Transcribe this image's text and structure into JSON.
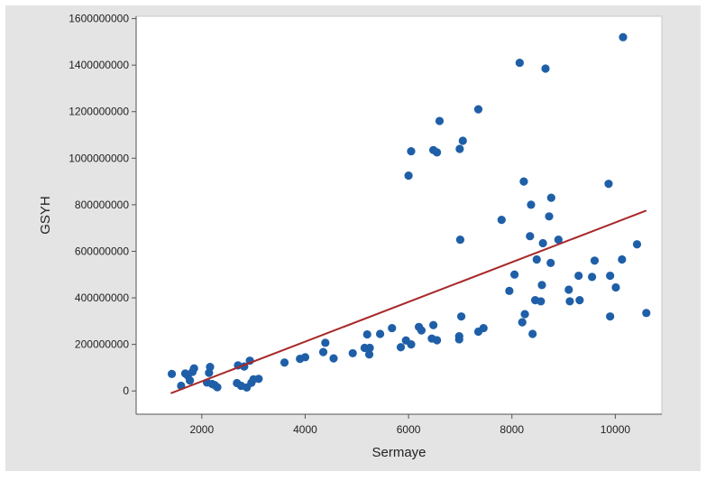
{
  "chart_data": {
    "type": "scatter",
    "title": "",
    "xlabel": "Sermaye",
    "ylabel": "GSYH",
    "xlim": [
      730,
      10900
    ],
    "ylim": [
      -100000000,
      1610000000
    ],
    "xticks": [
      2000,
      4000,
      6000,
      8000,
      10000
    ],
    "yticks": [
      0,
      200000000,
      400000000,
      600000000,
      800000000,
      1000000000,
      1200000000,
      1400000000,
      1600000000
    ],
    "xtick_labels": [
      "2000",
      "4000",
      "6000",
      "8000",
      "10000"
    ],
    "ytick_labels": [
      "0",
      "200000000",
      "400000000",
      "600000000",
      "800000000",
      "1000000000",
      "1200000000",
      "1400000000",
      "1600000000"
    ],
    "grid": false,
    "legend": "none",
    "colors": {
      "outer_background": "#e4e4e4",
      "plot_background": "#ffffff",
      "points": "#1f5fa8",
      "fit_line": "#a8292a",
      "text": "#222222"
    },
    "fit_line": {
      "x": [
        1400,
        10600
      ],
      "y": [
        -10000000,
        775000000
      ]
    },
    "points": [
      [
        1420,
        73000000
      ],
      [
        1600,
        22000000
      ],
      [
        1680,
        75000000
      ],
      [
        1730,
        66000000
      ],
      [
        1770,
        45000000
      ],
      [
        1820,
        82000000
      ],
      [
        1850,
        97000000
      ],
      [
        2100,
        36000000
      ],
      [
        2140,
        78000000
      ],
      [
        2160,
        103000000
      ],
      [
        2200,
        30000000
      ],
      [
        2250,
        25000000
      ],
      [
        2300,
        16000000
      ],
      [
        2680,
        34000000
      ],
      [
        2700,
        110000000
      ],
      [
        2760,
        22000000
      ],
      [
        2820,
        105000000
      ],
      [
        2870,
        15000000
      ],
      [
        2930,
        130000000
      ],
      [
        2960,
        35000000
      ],
      [
        3000,
        50000000
      ],
      [
        3100,
        52000000
      ],
      [
        3600,
        122000000
      ],
      [
        3900,
        138000000
      ],
      [
        4000,
        145000000
      ],
      [
        4350,
        167000000
      ],
      [
        4390,
        207000000
      ],
      [
        4550,
        140000000
      ],
      [
        4920,
        162000000
      ],
      [
        5150,
        185000000
      ],
      [
        5200,
        243000000
      ],
      [
        5240,
        157000000
      ],
      [
        5250,
        185000000
      ],
      [
        5450,
        245000000
      ],
      [
        5680,
        270000000
      ],
      [
        5850,
        188000000
      ],
      [
        5950,
        217000000
      ],
      [
        6050,
        200000000
      ],
      [
        6000,
        925000000
      ],
      [
        6050,
        1030000000
      ],
      [
        6200,
        275000000
      ],
      [
        6250,
        260000000
      ],
      [
        6450,
        225000000
      ],
      [
        6480,
        283000000
      ],
      [
        6480,
        1035000000
      ],
      [
        6550,
        1025000000
      ],
      [
        6550,
        218000000
      ],
      [
        6600,
        1160000000
      ],
      [
        6980,
        235000000
      ],
      [
        6980,
        222000000
      ],
      [
        6990,
        1040000000
      ],
      [
        7000,
        650000000
      ],
      [
        7020,
        320000000
      ],
      [
        7050,
        1075000000
      ],
      [
        7350,
        1210000000
      ],
      [
        7350,
        255000000
      ],
      [
        7450,
        270000000
      ],
      [
        7800,
        735000000
      ],
      [
        7950,
        430000000
      ],
      [
        8050,
        500000000
      ],
      [
        8150,
        1410000000
      ],
      [
        8200,
        295000000
      ],
      [
        8250,
        330000000
      ],
      [
        8230,
        900000000
      ],
      [
        8350,
        665000000
      ],
      [
        8370,
        800000000
      ],
      [
        8400,
        245000000
      ],
      [
        8450,
        390000000
      ],
      [
        8480,
        565000000
      ],
      [
        8560,
        385000000
      ],
      [
        8580,
        455000000
      ],
      [
        8600,
        635000000
      ],
      [
        8650,
        1385000000
      ],
      [
        8720,
        750000000
      ],
      [
        8750,
        550000000
      ],
      [
        8760,
        830000000
      ],
      [
        8900,
        650000000
      ],
      [
        9100,
        435000000
      ],
      [
        9120,
        385000000
      ],
      [
        9290,
        495000000
      ],
      [
        9310,
        390000000
      ],
      [
        9550,
        490000000
      ],
      [
        9600,
        560000000
      ],
      [
        9870,
        890000000
      ],
      [
        9900,
        320000000
      ],
      [
        9900,
        495000000
      ],
      [
        10010,
        445000000
      ],
      [
        10130,
        565000000
      ],
      [
        10150,
        1520000000
      ],
      [
        10420,
        630000000
      ],
      [
        10600,
        335000000
      ]
    ]
  }
}
